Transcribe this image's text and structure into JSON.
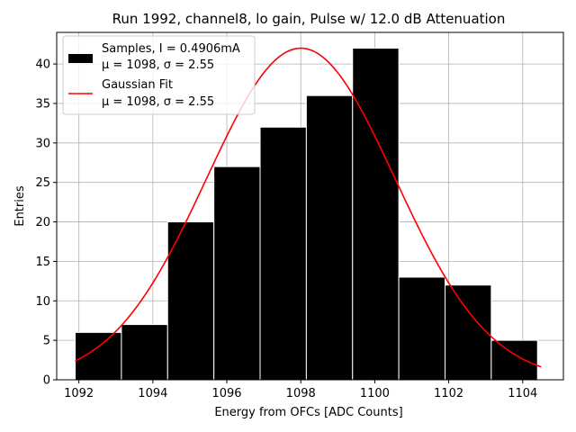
{
  "chart_data": {
    "type": "bar",
    "title": "Run 1992, channel8, lo gain, Pulse w/ 12.0 dB Attenuation",
    "xlabel": "Energy from OFCs [ADC Counts]",
    "ylabel": "Entries",
    "xlim": [
      1091.4,
      1105.1
    ],
    "ylim": [
      0,
      44
    ],
    "xticks": [
      1092,
      1094,
      1096,
      1098,
      1100,
      1102,
      1104
    ],
    "yticks": [
      0,
      5,
      10,
      15,
      20,
      25,
      30,
      35,
      40
    ],
    "grid": true,
    "bins": [
      {
        "x0": 1091.9,
        "x1": 1093.15,
        "count": 6
      },
      {
        "x0": 1093.15,
        "x1": 1094.4,
        "count": 7
      },
      {
        "x0": 1094.4,
        "x1": 1095.65,
        "count": 20
      },
      {
        "x0": 1095.65,
        "x1": 1096.9,
        "count": 27
      },
      {
        "x0": 1096.9,
        "x1": 1098.15,
        "count": 32
      },
      {
        "x0": 1098.15,
        "x1": 1099.4,
        "count": 36
      },
      {
        "x0": 1099.4,
        "x1": 1100.65,
        "count": 42
      },
      {
        "x0": 1100.65,
        "x1": 1101.9,
        "count": 13
      },
      {
        "x0": 1101.9,
        "x1": 1103.15,
        "count": 12
      },
      {
        "x0": 1103.15,
        "x1": 1104.4,
        "count": 5
      }
    ],
    "fit": {
      "type": "gaussian",
      "mu": 1098.0,
      "sigma": 2.55,
      "amplitude": 42,
      "x_range": [
        1091.9,
        1104.5
      ],
      "color": "#ff0000"
    },
    "bar_color": "#000000",
    "bar_edge_color": "#ffffff",
    "legend": {
      "position": "top-left",
      "entries": [
        {
          "line1": "Samples, I = 0.4906mA",
          "line2": "μ = 1098, σ = 2.55",
          "kind": "patch"
        },
        {
          "line1": "Gaussian Fit",
          "line2": "μ = 1098, σ = 2.55",
          "kind": "line"
        }
      ]
    }
  }
}
